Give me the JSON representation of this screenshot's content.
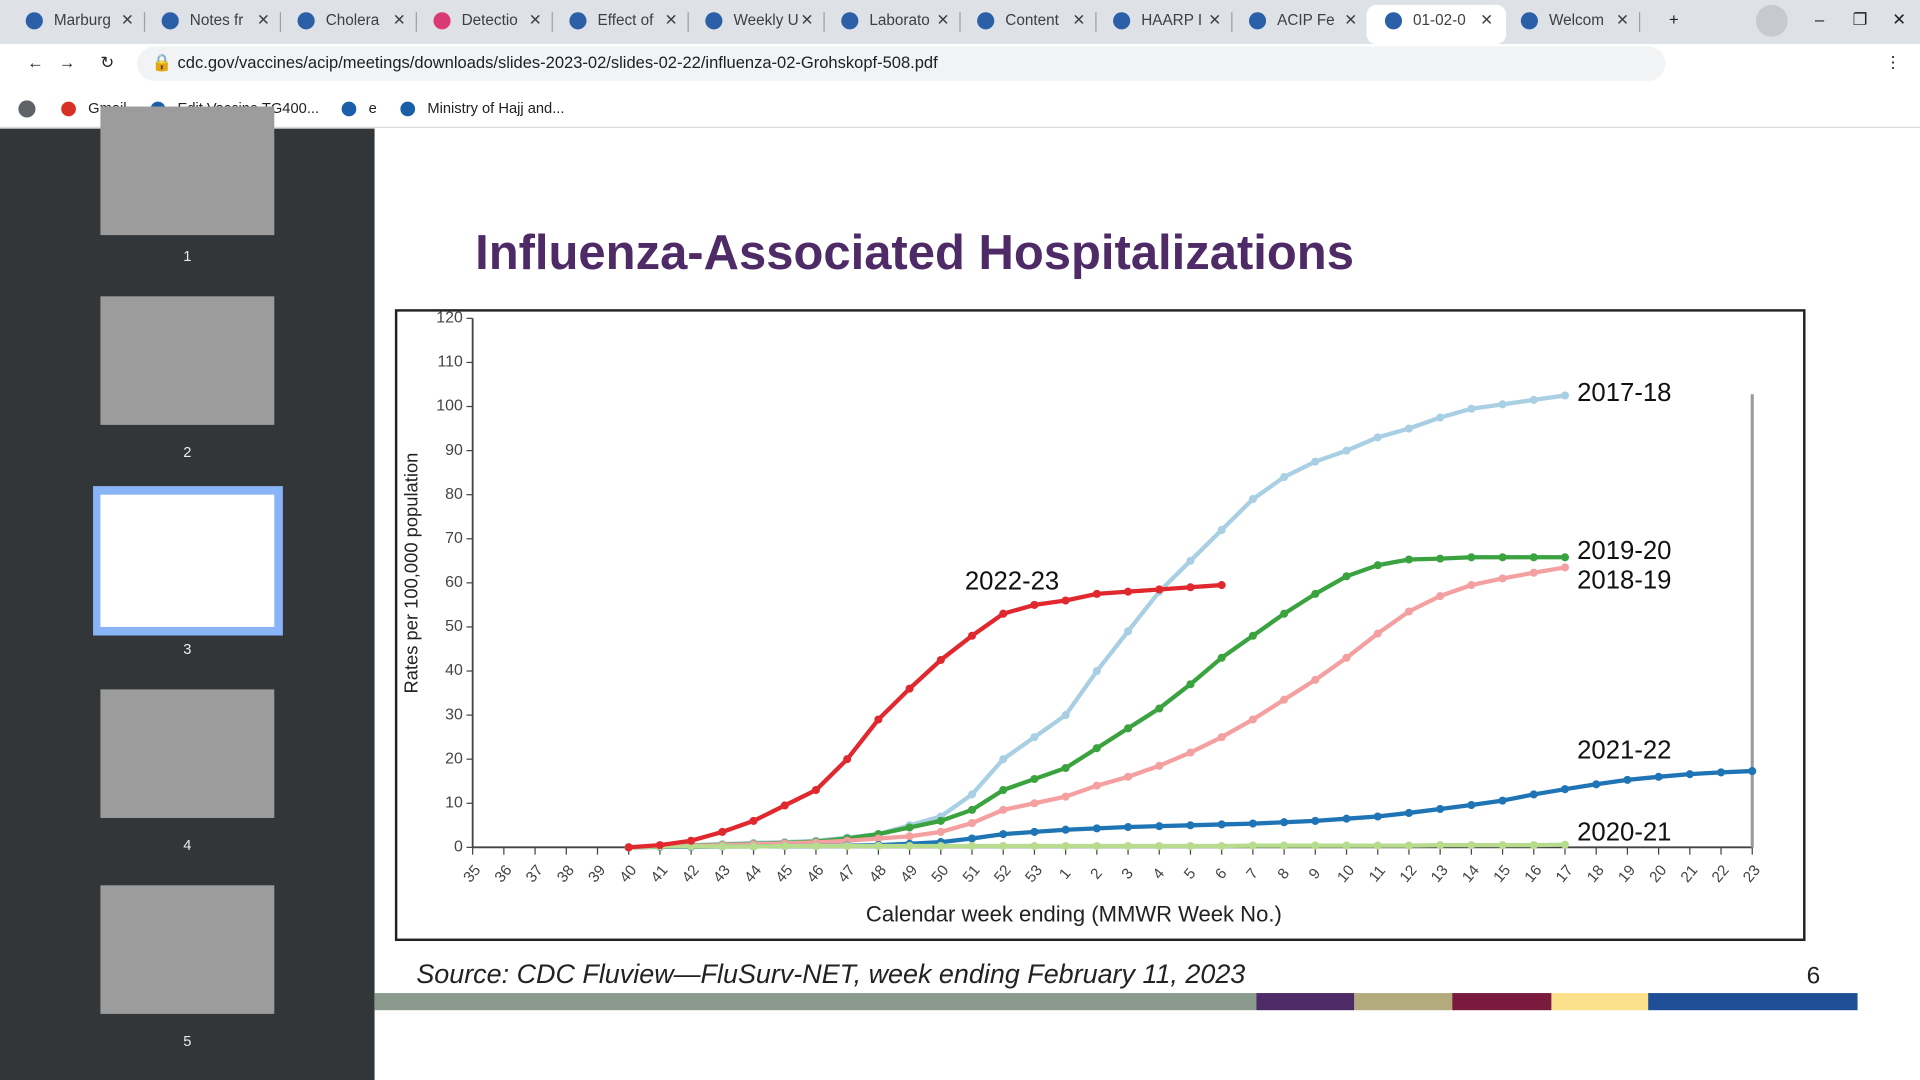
{
  "browser": {
    "tabs": [
      "Marburg",
      "Notes fr",
      "Cholera",
      "Detectio",
      "Effect of",
      "Weekly U",
      "Laborato",
      "Content",
      "HAARP I",
      "ACIP Fe",
      "01-02-0",
      "Welcom"
    ],
    "url": "cdc.gov/vaccines/acip/meetings/downloads/slides-2023-02/slides-02-22/influenza-02-Grohskopf-508.pdf",
    "bookmarks": [
      "Gmail",
      "Edit Vaccine TG400...",
      "e",
      "Ministry of Hajj and..."
    ]
  },
  "sidebar": {
    "pages": [
      "1",
      "2",
      "3",
      "4",
      "5"
    ]
  },
  "slide": {
    "title": "Influenza-Associated Hospitalizations",
    "source": "Source: CDC Fluview—FluSurv-NET, week ending February 11, 2023",
    "page_number": "6"
  },
  "chart_data": {
    "type": "line",
    "y_label": "Rates per 100,000 population",
    "x_label": "Calendar week ending (MMWR Week No.)",
    "categories": [
      "35",
      "36",
      "37",
      "38",
      "39",
      "40",
      "41",
      "42",
      "43",
      "44",
      "45",
      "46",
      "47",
      "48",
      "49",
      "50",
      "51",
      "52",
      "53",
      "1",
      "2",
      "3",
      "4",
      "5",
      "6",
      "7",
      "8",
      "9",
      "10",
      "11",
      "12",
      "13",
      "14",
      "15",
      "16",
      "17",
      "18",
      "19",
      "20",
      "21",
      "22",
      "23"
    ],
    "ylim": [
      0,
      120
    ],
    "yticks": [
      0,
      10,
      20,
      30,
      40,
      50,
      60,
      70,
      80,
      90,
      100,
      110,
      120
    ],
    "series": [
      {
        "name": "2017-18",
        "color": "#a8cfe3",
        "values": [
          null,
          null,
          null,
          null,
          null,
          0,
          0.3,
          0.5,
          0.7,
          1,
          1.2,
          1.5,
          2.2,
          3,
          5,
          7,
          12,
          20,
          25,
          30,
          40,
          49,
          58,
          65,
          72,
          79,
          84,
          87.5,
          90,
          93,
          95,
          97.5,
          99.5,
          100.5,
          101.5,
          102.5,
          null,
          null,
          null,
          null,
          null,
          null
        ]
      },
      {
        "name": "2019-20",
        "color": "#3aa33f",
        "values": [
          null,
          null,
          null,
          null,
          null,
          0,
          0.2,
          0.4,
          0.6,
          0.8,
          1,
          1.3,
          2,
          3,
          4.5,
          6,
          8.5,
          13,
          15.5,
          18,
          22.5,
          27,
          31.5,
          37,
          43,
          48,
          53,
          57.5,
          61.5,
          64,
          65.3,
          65.5,
          65.8,
          65.8,
          65.8,
          65.8,
          null,
          null,
          null,
          null,
          null,
          null
        ]
      },
      {
        "name": "2018-19",
        "color": "#f4a0a0",
        "values": [
          null,
          null,
          null,
          null,
          null,
          0,
          0.2,
          0.3,
          0.5,
          0.7,
          0.9,
          1.1,
          1.5,
          2,
          2.5,
          3.5,
          5.5,
          8.5,
          10,
          11.5,
          14,
          16,
          18.5,
          21.5,
          25,
          29,
          33.5,
          38,
          43,
          48.5,
          53.5,
          57,
          59.5,
          61,
          62.3,
          63.5,
          null,
          null,
          null,
          null,
          null,
          null
        ]
      },
      {
        "name": "2021-22",
        "color": "#1f74b5",
        "values": [
          null,
          null,
          null,
          null,
          null,
          0,
          0.1,
          0.1,
          0.2,
          0.2,
          0.3,
          0.3,
          0.4,
          0.5,
          0.8,
          1.2,
          2,
          3,
          3.5,
          4,
          4.3,
          4.6,
          4.8,
          5,
          5.2,
          5.4,
          5.7,
          6,
          6.5,
          7,
          7.8,
          8.7,
          9.6,
          10.6,
          12,
          13.2,
          14.3,
          15.3,
          16,
          16.6,
          17,
          17.3
        ]
      },
      {
        "name": "2020-21",
        "color": "#b8dc8e",
        "values": [
          null,
          null,
          null,
          null,
          null,
          0,
          0.2,
          0.2,
          0.2,
          0.2,
          0.3,
          0.3,
          0.3,
          0.3,
          0.3,
          0.3,
          0.3,
          0.3,
          0.3,
          0.3,
          0.3,
          0.3,
          0.3,
          0.3,
          0.3,
          0.4,
          0.4,
          0.4,
          0.4,
          0.4,
          0.4,
          0.5,
          0.5,
          0.5,
          0.5,
          0.6,
          null,
          null,
          null,
          null,
          null,
          null
        ]
      },
      {
        "name": "2022-23",
        "color": "#e0282e",
        "values": [
          null,
          null,
          null,
          null,
          null,
          0,
          0.5,
          1.5,
          3.5,
          6,
          9.5,
          13,
          20,
          29,
          36,
          42.5,
          48,
          53,
          55,
          56,
          57.5,
          58,
          58.5,
          59,
          59.5,
          null,
          null,
          null,
          null,
          null,
          null,
          null,
          null,
          null,
          null,
          null,
          null,
          null,
          null,
          null,
          null,
          null
        ]
      }
    ]
  }
}
